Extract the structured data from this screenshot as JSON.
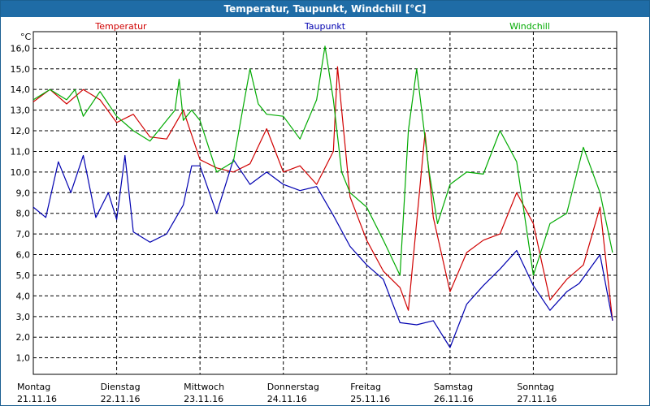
{
  "window": {
    "title": "Temperatur, Taupunkt, Windchill [°C]"
  },
  "chart_data": {
    "type": "line",
    "title": "Temperatur, Taupunkt, Windchill [°C]",
    "ylabel": "°C",
    "ylim": [
      0.2,
      16.8
    ],
    "xlim": [
      0,
      7
    ],
    "grid": true,
    "legend": "top",
    "y_ticks": [
      "1,0",
      "2,0",
      "3,0",
      "4,0",
      "5,0",
      "6,0",
      "7,0",
      "8,0",
      "9,0",
      "10,0",
      "11,0",
      "12,0",
      "13,0",
      "14,0",
      "15,0",
      "16,0"
    ],
    "y_tick_values": [
      1,
      2,
      3,
      4,
      5,
      6,
      7,
      8,
      9,
      10,
      11,
      12,
      13,
      14,
      15,
      16
    ],
    "x_ticks": [
      {
        "day": "Montag",
        "date": "21.11.16"
      },
      {
        "day": "Dienstag",
        "date": "22.11.16"
      },
      {
        "day": "Mittwoch",
        "date": "23.11.16"
      },
      {
        "day": "Donnerstag",
        "date": "24.11.16"
      },
      {
        "day": "Freitag",
        "date": "25.11.16"
      },
      {
        "day": "Samstag",
        "date": "26.11.16"
      },
      {
        "day": "Sonntag",
        "date": "27.11.16"
      }
    ],
    "x_tick_values": [
      0,
      1,
      2,
      3,
      4,
      5,
      6
    ],
    "series": [
      {
        "name": "Temperatur",
        "color": "#d00000",
        "x": [
          0,
          0.2,
          0.4,
          0.6,
          0.8,
          1.0,
          1.2,
          1.4,
          1.6,
          1.8,
          2.0,
          2.2,
          2.4,
          2.6,
          2.8,
          3.0,
          3.2,
          3.4,
          3.6,
          3.65,
          3.8,
          4.0,
          4.2,
          4.4,
          4.5,
          4.7,
          4.8,
          5.0,
          5.2,
          5.4,
          5.6,
          5.8,
          6.0,
          6.2,
          6.4,
          6.6,
          6.8,
          6.95
        ],
        "y": [
          13.4,
          14.0,
          13.3,
          14.0,
          13.5,
          12.4,
          12.8,
          11.7,
          11.6,
          13.0,
          10.6,
          10.2,
          10.0,
          10.4,
          12.1,
          10.0,
          10.3,
          9.4,
          11.0,
          15.1,
          8.8,
          6.7,
          5.2,
          4.4,
          3.3,
          11.9,
          7.8,
          4.2,
          6.1,
          6.7,
          7.0,
          9.0,
          7.5,
          3.8,
          4.8,
          5.5,
          8.3,
          2.8
        ]
      },
      {
        "name": "Taupunkt",
        "color": "#0000b0",
        "x": [
          0,
          0.15,
          0.3,
          0.45,
          0.6,
          0.75,
          0.9,
          1.0,
          1.1,
          1.2,
          1.4,
          1.6,
          1.8,
          1.9,
          2.0,
          2.2,
          2.4,
          2.6,
          2.8,
          3.0,
          3.2,
          3.4,
          3.6,
          3.8,
          4.0,
          4.2,
          4.4,
          4.6,
          4.8,
          5.0,
          5.2,
          5.4,
          5.6,
          5.8,
          6.0,
          6.2,
          6.4,
          6.55,
          6.8,
          6.95
        ],
        "y": [
          8.3,
          7.8,
          10.5,
          9.0,
          10.8,
          7.8,
          9.0,
          7.7,
          10.8,
          7.1,
          6.6,
          7.0,
          8.4,
          10.3,
          10.3,
          8.0,
          10.6,
          9.4,
          10.0,
          9.4,
          9.1,
          9.3,
          7.9,
          6.4,
          5.5,
          4.8,
          2.7,
          2.6,
          2.8,
          1.5,
          3.6,
          4.5,
          5.3,
          6.2,
          4.5,
          3.3,
          4.2,
          4.6,
          6.0,
          2.8
        ]
      },
      {
        "name": "Windchill",
        "color": "#00aa00",
        "x": [
          0,
          0.2,
          0.4,
          0.5,
          0.6,
          0.8,
          1.0,
          1.2,
          1.4,
          1.6,
          1.7,
          1.75,
          1.8,
          1.9,
          2.0,
          2.2,
          2.4,
          2.6,
          2.7,
          2.8,
          3.0,
          3.2,
          3.4,
          3.5,
          3.6,
          3.7,
          3.8,
          4.0,
          4.2,
          4.4,
          4.5,
          4.6,
          4.75,
          4.85,
          5.0,
          5.2,
          5.4,
          5.6,
          5.8,
          6.0,
          6.2,
          6.4,
          6.6,
          6.8,
          6.95
        ],
        "y": [
          13.5,
          14.0,
          13.5,
          14.0,
          12.7,
          13.9,
          12.7,
          12.0,
          11.5,
          12.5,
          13.0,
          14.5,
          12.5,
          13.0,
          12.5,
          10.0,
          10.5,
          15.0,
          13.3,
          12.8,
          12.7,
          11.6,
          13.5,
          16.1,
          13.5,
          10.0,
          9.0,
          8.3,
          6.7,
          5.0,
          12.0,
          15.0,
          10.0,
          7.5,
          9.4,
          10.0,
          9.9,
          12.0,
          10.5,
          5.0,
          7.5,
          8.0,
          11.2,
          9.0,
          6.1
        ]
      }
    ]
  }
}
